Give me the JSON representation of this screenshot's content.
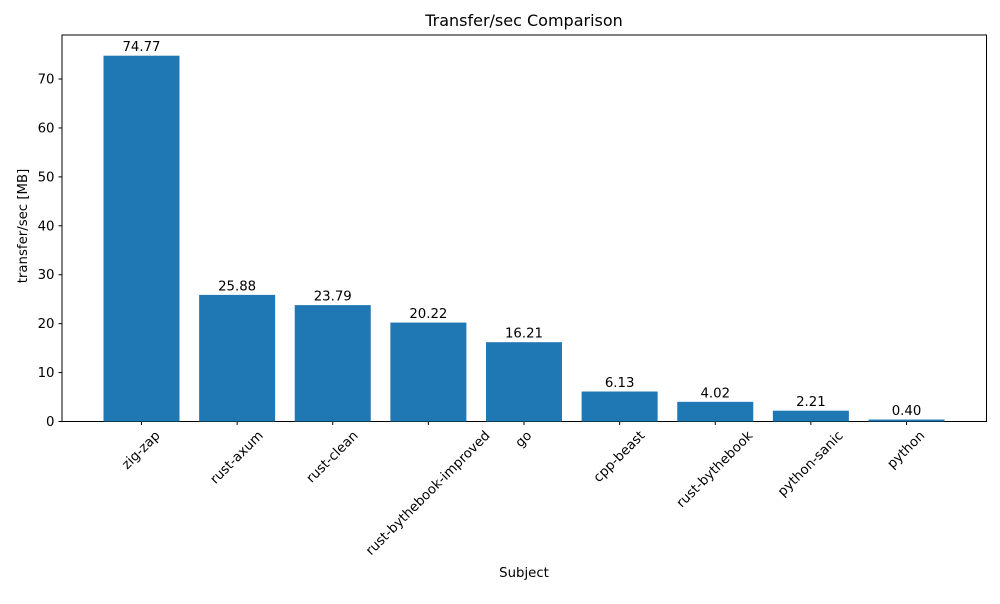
{
  "chart_data": {
    "type": "bar",
    "title": "Transfer/sec Comparison",
    "xlabel": "Subject",
    "ylabel": "transfer/sec [MB]",
    "categories": [
      "zig-zap",
      "rust-axum",
      "rust-clean",
      "rust-bythebook-improved",
      "go",
      "cpp-beast",
      "rust-bythebook",
      "python-sanic",
      "python"
    ],
    "values": [
      74.77,
      25.88,
      23.79,
      20.22,
      16.21,
      6.13,
      4.02,
      2.21,
      0.4
    ],
    "value_labels": [
      "74.77",
      "25.88",
      "23.79",
      "20.22",
      "16.21",
      "6.13",
      "4.02",
      "2.21",
      "0.40"
    ],
    "yticks": [
      0,
      10,
      20,
      30,
      40,
      50,
      60,
      70
    ],
    "ylim": [
      0,
      79
    ],
    "x_tick_rotation_deg": 45,
    "bar_color": "#1f77b4",
    "text_color": "#000000",
    "spine_color": "#000000",
    "grid": false,
    "legend_position": "none"
  }
}
